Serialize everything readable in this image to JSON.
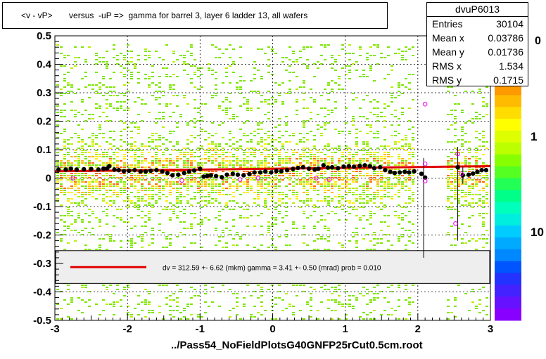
{
  "title": "<v - vP>       versus  -uP =>  gamma for barrel 3, layer 6 ladder 13, all wafers",
  "stats": {
    "name": "dvuP6013",
    "rows": [
      {
        "k": "Entries",
        "v": "30104"
      },
      {
        "k": "Mean x",
        "v": "0.03786"
      },
      {
        "k": "Mean y",
        "v": "0.01736"
      },
      {
        "k": "RMS x",
        "v": "1.534"
      },
      {
        "k": "RMS y",
        "v": "0.1715"
      }
    ]
  },
  "legend": {
    "text": "dv =  312.59 +-  6.62 (mkm) gamma =    3.41 +-  0.50 (mrad) prob = 0.010",
    "color": "#e00000"
  },
  "x_title": "../Pass54_NoFieldPlotsG40GNFP25rCut0.5cm.root",
  "colorbar_labels": [
    "1",
    "10"
  ],
  "colorbar_top_label": "0",
  "chart_data": {
    "type": "scatter",
    "xlim": [
      -3,
      3
    ],
    "ylim": [
      -0.5,
      0.5
    ],
    "x_ticks": [
      "-3",
      "-2",
      "-1",
      "0",
      "1",
      "2",
      "3"
    ],
    "y_ticks": [
      "-0.5",
      "-0.4",
      "-0.3",
      "-0.2",
      "-0.1",
      "0",
      "0.1",
      "0.2",
      "0.3",
      "0.4",
      "0.5"
    ],
    "grid": true,
    "fit_line": {
      "x": [
        -3,
        3
      ],
      "y": [
        0.024,
        0.042
      ]
    },
    "profile_black": [
      [
        -2.95,
        0.03
      ],
      [
        -2.85,
        0.03
      ],
      [
        -2.78,
        0.033
      ],
      [
        -2.7,
        0.03
      ],
      [
        -2.6,
        0.031
      ],
      [
        -2.5,
        0.032
      ],
      [
        -2.4,
        0.03
      ],
      [
        -2.33,
        0.033
      ],
      [
        -2.28,
        0.034
      ],
      [
        -2.25,
        0.042
      ],
      [
        -2.18,
        0.03
      ],
      [
        -2.12,
        0.028
      ],
      [
        -2.05,
        0.024
      ],
      [
        -1.98,
        0.026
      ],
      [
        -1.9,
        0.028
      ],
      [
        -1.82,
        0.023
      ],
      [
        -1.75,
        0.023
      ],
      [
        -1.68,
        0.026
      ],
      [
        -1.6,
        0.028
      ],
      [
        -1.52,
        0.023
      ],
      [
        -1.45,
        0.018
      ],
      [
        -1.38,
        0.01
      ],
      [
        -1.3,
        0.012
      ],
      [
        -1.22,
        0.018
      ],
      [
        -1.15,
        0.023
      ],
      [
        -1.08,
        0.027
      ],
      [
        -1.0,
        0.032
      ],
      [
        -0.95,
        0.005
      ],
      [
        -0.9,
        0.008
      ],
      [
        -0.85,
        0.01
      ],
      [
        -0.78,
        0.007
      ],
      [
        -0.7,
        0.003
      ],
      [
        -0.63,
        0.012
      ],
      [
        -0.55,
        0.015
      ],
      [
        -0.48,
        0.012
      ],
      [
        -0.4,
        0.01
      ],
      [
        -0.32,
        0.014
      ],
      [
        -0.25,
        0.02
      ],
      [
        -0.17,
        0.02
      ],
      [
        -0.1,
        0.023
      ],
      [
        -0.02,
        0.02
      ],
      [
        0.05,
        0.025
      ],
      [
        0.12,
        0.024
      ],
      [
        0.2,
        0.028
      ],
      [
        0.28,
        0.032
      ],
      [
        0.35,
        0.036
      ],
      [
        0.42,
        0.038
      ],
      [
        0.5,
        0.033
      ],
      [
        0.58,
        0.03
      ],
      [
        0.63,
        0.033
      ],
      [
        0.7,
        0.045
      ],
      [
        0.76,
        0.037
      ],
      [
        0.82,
        0.038
      ],
      [
        0.9,
        0.035
      ],
      [
        0.98,
        0.04
      ],
      [
        1.05,
        0.042
      ],
      [
        1.12,
        0.04
      ],
      [
        1.2,
        0.043
      ],
      [
        1.27,
        0.045
      ],
      [
        1.34,
        0.042
      ],
      [
        1.4,
        0.035
      ],
      [
        1.48,
        0.038
      ],
      [
        1.55,
        0.028
      ],
      [
        1.62,
        0.022
      ],
      [
        1.68,
        0.018
      ],
      [
        1.75,
        0.02
      ],
      [
        1.82,
        0.022
      ],
      [
        1.88,
        0.02
      ],
      [
        1.95,
        0.024
      ],
      [
        2.05,
        0.015
      ],
      [
        2.1,
        0.002
      ],
      [
        2.55,
        0.038
      ],
      [
        2.62,
        0.01
      ],
      [
        2.7,
        0.012
      ],
      [
        2.76,
        0.016
      ],
      [
        2.82,
        0.022
      ],
      [
        2.88,
        0.028
      ],
      [
        2.94,
        0.028
      ]
    ],
    "errorbars": [
      [
        2.08,
        0.07,
        -0.28
      ],
      [
        2.55,
        0.11,
        -0.22
      ],
      [
        2.62,
        0.04,
        -0.02
      ]
    ],
    "profile_open": [
      [
        2.1,
        0.26
      ],
      [
        2.1,
        0.05
      ],
      [
        2.1,
        -0.01
      ],
      [
        2.55,
        0.085
      ],
      [
        2.52,
        -0.16
      ],
      [
        2.6,
        0.015
      ],
      [
        -0.45,
        -0.005
      ],
      [
        -0.2,
        0.0
      ],
      [
        0.6,
        0.0
      ],
      [
        0.78,
        -0.005
      ],
      [
        -2.75,
        0.0
      ],
      [
        -1.25,
        -0.008
      ]
    ]
  }
}
